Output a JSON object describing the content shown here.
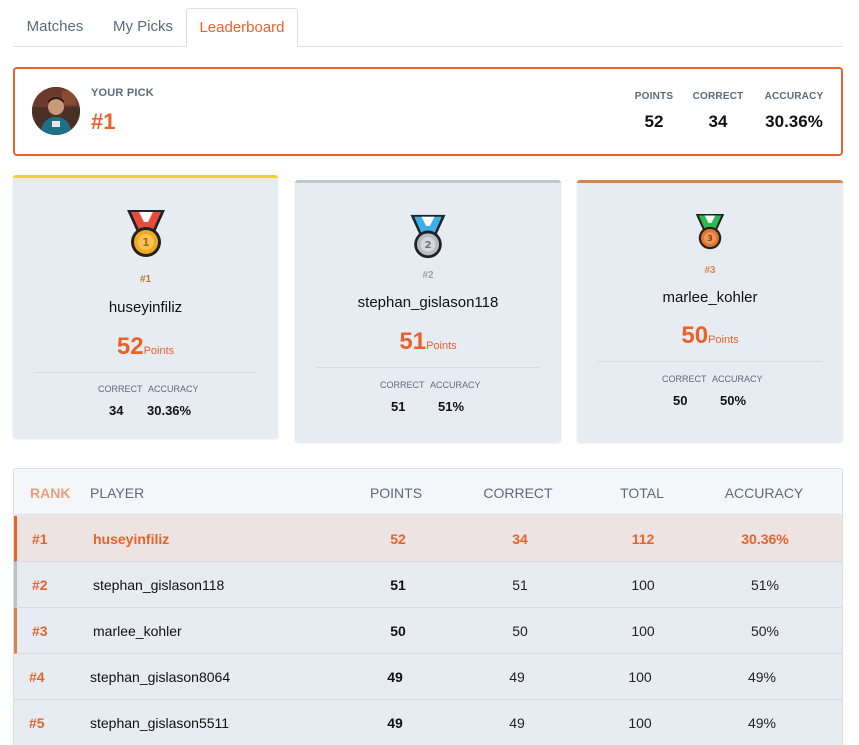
{
  "tabs": [
    {
      "label": "Matches"
    },
    {
      "label": "My Picks"
    },
    {
      "label": "Leaderboard"
    }
  ],
  "active_tab": "Leaderboard",
  "your_pick": {
    "label": "YOUR PICK",
    "rank": "#1",
    "stats": [
      {
        "label": "POINTS",
        "value": "52"
      },
      {
        "label": "CORRECT",
        "value": "34"
      },
      {
        "label": "ACCURACY",
        "value": "30.36%"
      }
    ]
  },
  "podium": [
    {
      "rank": "#1",
      "name": "huseyinfiliz",
      "points": "52",
      "points_unit": "Points",
      "correct_label": "CORRECT",
      "correct": "34",
      "accuracy_label": "ACCURACY",
      "accuracy": "30.36%",
      "medal_number": "1",
      "medal_color": "#f2a91d",
      "ribbon_color": "#e54c3c",
      "top_color": "#f5cf2e"
    },
    {
      "rank": "#2",
      "name": "stephan_gislason118",
      "points": "51",
      "points_unit": "Points",
      "correct_label": "CORRECT",
      "correct": "51",
      "accuracy_label": "ACCURACY",
      "accuracy": "51%",
      "medal_number": "2",
      "medal_color": "#b7bcc2",
      "ribbon_color": "#3aaee6",
      "top_color": "#c3c7cc"
    },
    {
      "rank": "#3",
      "name": "marlee_kohler",
      "points": "50",
      "points_unit": "Points",
      "correct_label": "CORRECT",
      "correct": "50",
      "accuracy_label": "ACCURACY",
      "accuracy": "50%",
      "medal_number": "3",
      "medal_color": "#e0752e",
      "ribbon_color": "#2fb84f",
      "top_color": "#d6854a"
    }
  ],
  "table": {
    "headers": {
      "rank": "RANK",
      "player": "PLAYER",
      "points": "POINTS",
      "correct": "CORRECT",
      "total": "TOTAL",
      "accuracy": "ACCURACY"
    },
    "rows": [
      {
        "rank": "#1",
        "player": "huseyinfiliz",
        "points": "52",
        "correct": "34",
        "total": "112",
        "accuracy": "30.36%"
      },
      {
        "rank": "#2",
        "player": "stephan_gislason118",
        "points": "51",
        "correct": "51",
        "total": "100",
        "accuracy": "51%"
      },
      {
        "rank": "#3",
        "player": "marlee_kohler",
        "points": "50",
        "correct": "50",
        "total": "100",
        "accuracy": "50%"
      },
      {
        "rank": "#4",
        "player": "stephan_gislason8064",
        "points": "49",
        "correct": "49",
        "total": "100",
        "accuracy": "49%"
      },
      {
        "rank": "#5",
        "player": "stephan_gislason5511",
        "points": "49",
        "correct": "49",
        "total": "100",
        "accuracy": "49%"
      }
    ]
  },
  "colors": {
    "accent": "#e8622a",
    "muted": "#5b6b7c",
    "card_bg": "#e7ecf3"
  }
}
